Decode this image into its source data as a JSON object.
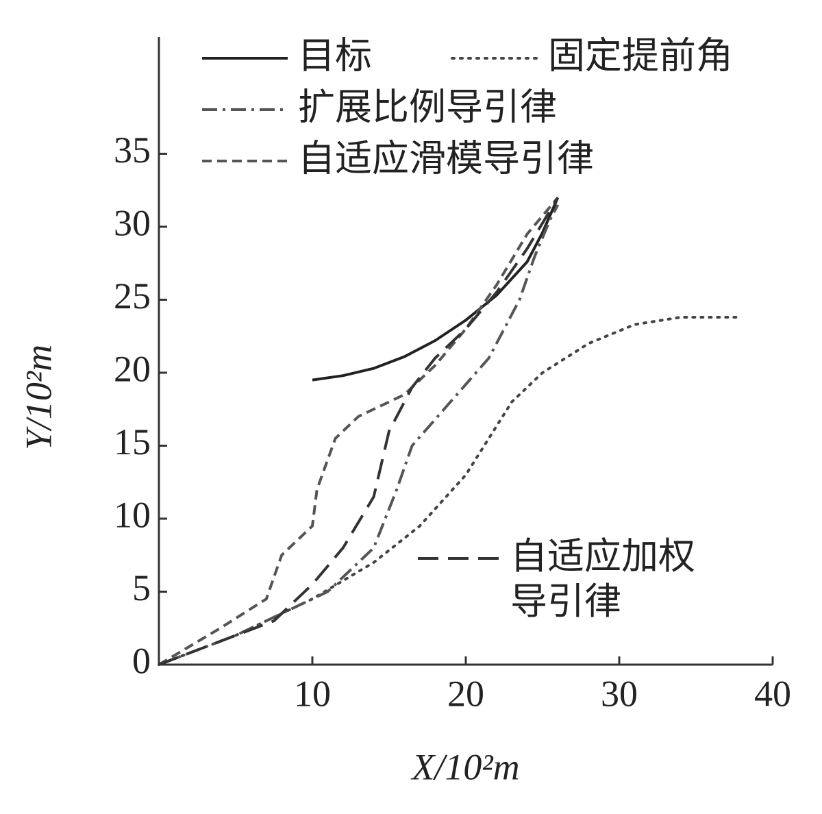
{
  "chart_data": {
    "type": "line",
    "x_label": "X/10²m",
    "y_label": "Y/10²m",
    "xlim": [
      0,
      40
    ],
    "ylim": [
      0,
      43
    ],
    "xticks": [
      10,
      20,
      30,
      40
    ],
    "yticks": [
      0,
      5,
      10,
      15,
      20,
      25,
      30,
      35
    ],
    "series": [
      {
        "name": "目标",
        "color": "#222222",
        "dash": "solid",
        "x": [
          10,
          12,
          14,
          16,
          18,
          20,
          22,
          24,
          25,
          26
        ],
        "values": [
          19.5,
          19.8,
          20.3,
          21.1,
          22.2,
          23.6,
          25.3,
          27.6,
          29.6,
          32
        ]
      },
      {
        "name": "固定提前角",
        "color": "#444444",
        "dash": "dotted",
        "x": [
          0,
          5,
          8,
          10,
          14,
          17,
          20,
          23,
          25,
          28,
          31,
          34,
          38
        ],
        "values": [
          0,
          2,
          3.5,
          4.5,
          7,
          9.5,
          13,
          18,
          20,
          22,
          23.3,
          23.8,
          23.8
        ]
      },
      {
        "name": "扩展比例导引律",
        "color": "#555555",
        "dash": "dashdot",
        "x": [
          0,
          5,
          8,
          11,
          14,
          15.5,
          16.5,
          19,
          21.5,
          23.5,
          24.5,
          25.5,
          26
        ],
        "values": [
          0,
          2,
          3.5,
          5,
          8,
          12,
          15,
          18,
          21,
          25,
          28,
          30.5,
          31.5
        ]
      },
      {
        "name": "自适应滑模导引律",
        "color": "#555555",
        "dash": "short",
        "x": [
          0,
          4,
          7,
          8,
          10,
          10.3,
          11.5,
          13,
          16,
          18,
          20,
          22,
          24,
          26
        ],
        "values": [
          0,
          2.5,
          4.5,
          7.5,
          9.5,
          12,
          15.5,
          17,
          18.5,
          20.5,
          23,
          26,
          29.5,
          32
        ]
      },
      {
        "name": "自适应加权导引律",
        "color": "#333333",
        "dash": "long",
        "x": [
          0,
          5,
          7.5,
          10,
          12,
          14,
          15,
          16.5,
          18,
          20,
          22,
          24,
          26
        ],
        "values": [
          0,
          2,
          3,
          5.5,
          8,
          11.5,
          16,
          19,
          21,
          23,
          25.5,
          28.5,
          32
        ]
      }
    ]
  }
}
